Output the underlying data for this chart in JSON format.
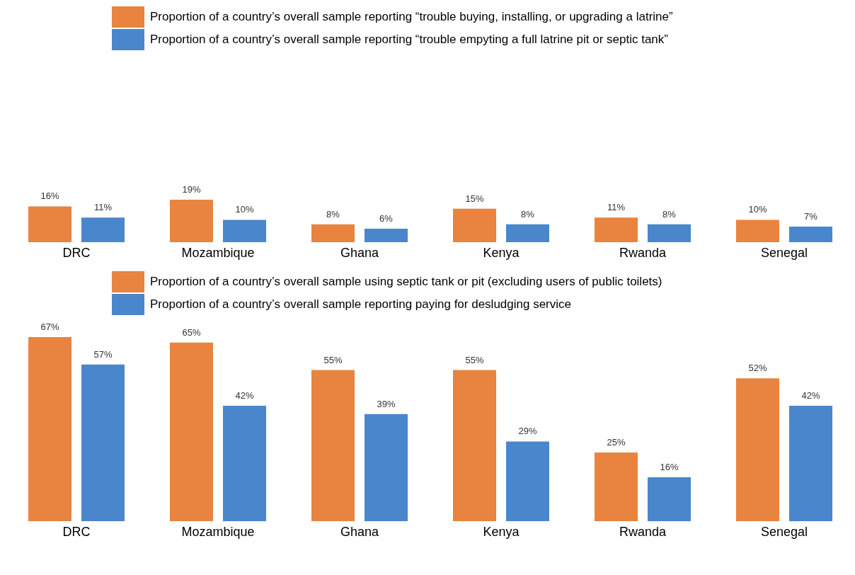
{
  "chart_data": [
    {
      "type": "bar",
      "categories": [
        "DRC",
        "Mozambique",
        "Ghana",
        "Kenya",
        "Rwanda",
        "Senegal"
      ],
      "legend": "top",
      "series": [
        {
          "name": "Proportion of a country’s overall sample reporting “trouble buying, installing, or upgrading a latrine”",
          "color": "#e8843f",
          "values": [
            16,
            19,
            8,
            15,
            11,
            10
          ],
          "value_labels": [
            "16%",
            "19%",
            "8%",
            "15%",
            "11%",
            "10%"
          ]
        },
        {
          "name": "Proportion of a country’s overall sample reporting “trouble empyting a full latrine pit or septic tank”",
          "color": "#4a86cc",
          "values": [
            11,
            10,
            6,
            8,
            8,
            7
          ],
          "value_labels": [
            "11%",
            "10%",
            "6%",
            "8%",
            "8%",
            "7%"
          ]
        }
      ]
    },
    {
      "type": "bar",
      "categories": [
        "DRC",
        "Mozambique",
        "Ghana",
        "Kenya",
        "Rwanda",
        "Senegal"
      ],
      "legend": "top",
      "series": [
        {
          "name": "Proportion of a country’s overall sample using septic tank or pit (excluding users of public toilets)",
          "color": "#e8843f",
          "values": [
            67,
            65,
            55,
            55,
            25,
            52
          ],
          "value_labels": [
            "67%",
            "65%",
            "55%",
            "55%",
            "25%",
            "52%"
          ]
        },
        {
          "name": "Proportion of a country’s overall sample reporting paying for desludging service",
          "color": "#4a86cc",
          "values": [
            57,
            42,
            39,
            29,
            16,
            42
          ],
          "value_labels": [
            "57%",
            "42%",
            "39%",
            "29%",
            "16%",
            "42%"
          ]
        }
      ]
    }
  ]
}
